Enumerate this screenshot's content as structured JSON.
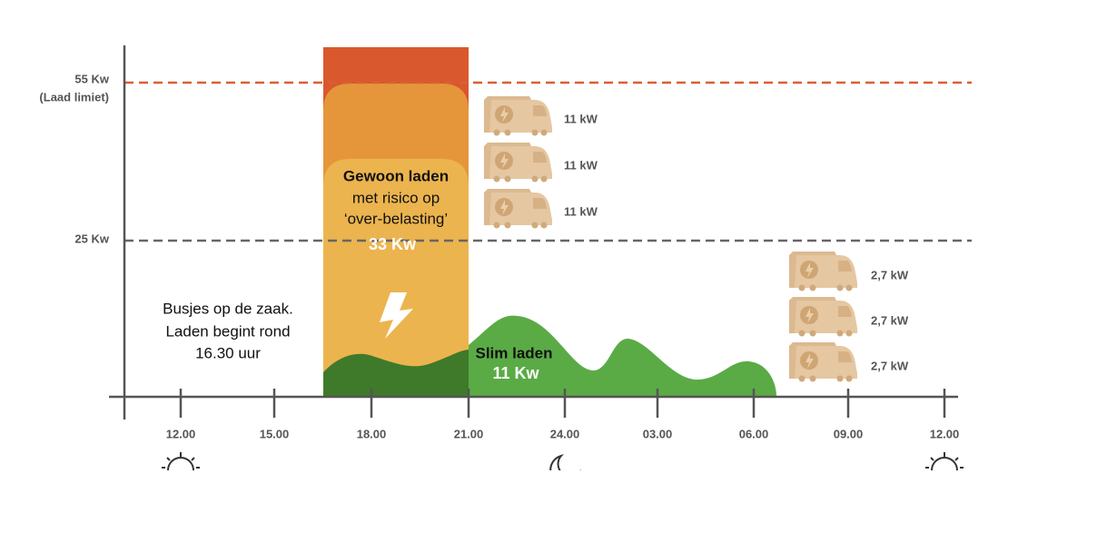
{
  "y_axis": {
    "limit": {
      "label": "55 Kw",
      "note": "(Laad limiet)"
    },
    "level": {
      "label": "25 Kw"
    }
  },
  "x_axis": {
    "labels": [
      "12.00",
      "15.00",
      "18.00",
      "21.00",
      "24.00",
      "03.00",
      "06.00",
      "09.00",
      "12.00"
    ]
  },
  "annotations": {
    "regular": {
      "title": "Gewoon laden",
      "lines": [
        "met risico op",
        "‘over-belasting’"
      ],
      "power": "33 Kw"
    },
    "smart": {
      "title": "Slim laden",
      "power": "11 Kw"
    },
    "intro": {
      "lines": [
        "Busjes op de zaak.",
        "Laden begint rond",
        "16.30 uur"
      ]
    }
  },
  "vans": {
    "evening": [
      "11 kW",
      "11 kW",
      "11 kW"
    ],
    "morning": [
      "2,7 kW",
      "2,7 kW",
      "2,7 kW"
    ]
  }
}
